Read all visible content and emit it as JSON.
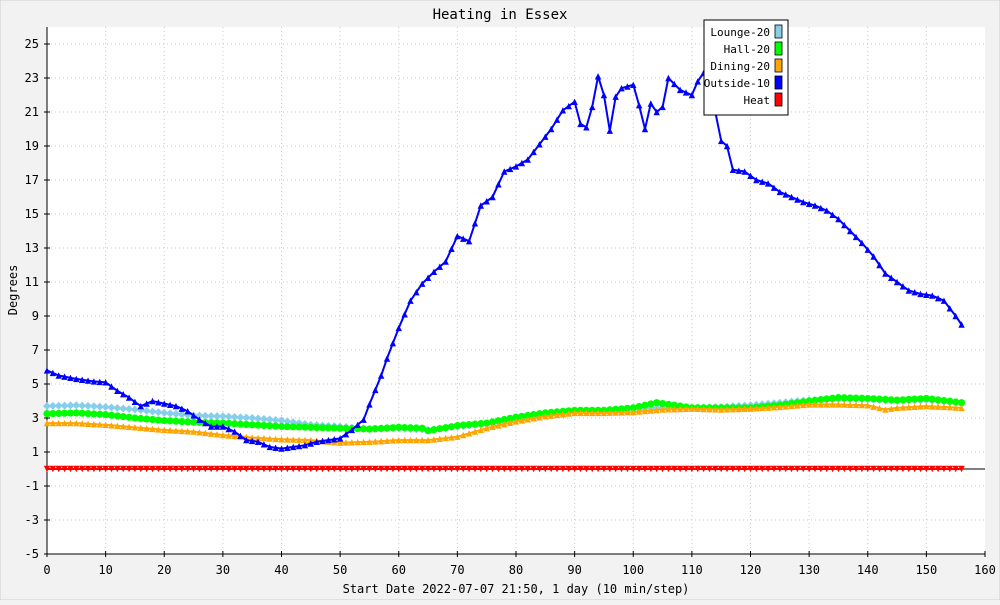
{
  "chart_data": {
    "type": "line",
    "title": "Heating in Essex",
    "xlabel": "Start Date 2022-07-07 21:50, 1 day (10 min/step)",
    "ylabel": "Degrees",
    "xlim": [
      0,
      160
    ],
    "ylim": [
      -5,
      26
    ],
    "xticks": [
      0,
      10,
      20,
      30,
      40,
      50,
      60,
      70,
      80,
      90,
      100,
      110,
      120,
      130,
      140,
      150,
      160
    ],
    "yticks": [
      -5,
      -3,
      -1,
      1,
      3,
      5,
      7,
      9,
      11,
      13,
      15,
      17,
      19,
      21,
      23,
      25
    ],
    "grid": true,
    "legend_position": "top-right",
    "series": [
      {
        "name": "Lounge-20",
        "color": "#87ceeb",
        "marker": "diamond",
        "points": [
          [
            0,
            3.7
          ],
          [
            5,
            3.75
          ],
          [
            10,
            3.65
          ],
          [
            15,
            3.5
          ],
          [
            20,
            3.3
          ],
          [
            25,
            3.15
          ],
          [
            30,
            3.1
          ],
          [
            35,
            3.0
          ],
          [
            40,
            2.85
          ],
          [
            45,
            2.6
          ],
          [
            50,
            2.5
          ],
          [
            55,
            2.35
          ],
          [
            60,
            2.4
          ],
          [
            65,
            2.3
          ],
          [
            70,
            2.5
          ],
          [
            75,
            2.65
          ],
          [
            80,
            2.9
          ],
          [
            85,
            3.2
          ],
          [
            90,
            3.4
          ],
          [
            95,
            3.45
          ],
          [
            100,
            3.55
          ],
          [
            105,
            3.6
          ],
          [
            110,
            3.6
          ],
          [
            115,
            3.65
          ],
          [
            120,
            3.75
          ],
          [
            125,
            3.9
          ],
          [
            130,
            4.05
          ],
          [
            135,
            4.1
          ],
          [
            140,
            4.1
          ],
          [
            145,
            4.0
          ],
          [
            150,
            4.05
          ],
          [
            156,
            3.9
          ]
        ]
      },
      {
        "name": "Hall-20",
        "color": "#00ff00",
        "marker": "circle",
        "points": [
          [
            0,
            3.25
          ],
          [
            5,
            3.3
          ],
          [
            10,
            3.2
          ],
          [
            15,
            3.0
          ],
          [
            20,
            2.85
          ],
          [
            25,
            2.75
          ],
          [
            30,
            2.7
          ],
          [
            35,
            2.6
          ],
          [
            40,
            2.5
          ],
          [
            45,
            2.45
          ],
          [
            50,
            2.4
          ],
          [
            55,
            2.35
          ],
          [
            60,
            2.45
          ],
          [
            64,
            2.4
          ],
          [
            65,
            2.25
          ],
          [
            70,
            2.55
          ],
          [
            75,
            2.7
          ],
          [
            80,
            3.05
          ],
          [
            85,
            3.3
          ],
          [
            90,
            3.45
          ],
          [
            95,
            3.45
          ],
          [
            100,
            3.6
          ],
          [
            104,
            3.9
          ],
          [
            108,
            3.7
          ],
          [
            110,
            3.6
          ],
          [
            115,
            3.6
          ],
          [
            120,
            3.6
          ],
          [
            125,
            3.75
          ],
          [
            130,
            4.0
          ],
          [
            135,
            4.2
          ],
          [
            140,
            4.15
          ],
          [
            145,
            4.05
          ],
          [
            150,
            4.15
          ],
          [
            156,
            3.9
          ]
        ]
      },
      {
        "name": "Dining-20",
        "color": "#ffa500",
        "marker": "triangle-up",
        "points": [
          [
            0,
            2.7
          ],
          [
            5,
            2.7
          ],
          [
            10,
            2.6
          ],
          [
            15,
            2.45
          ],
          [
            20,
            2.3
          ],
          [
            25,
            2.2
          ],
          [
            30,
            2.0
          ],
          [
            35,
            1.85
          ],
          [
            40,
            1.75
          ],
          [
            45,
            1.7
          ],
          [
            50,
            1.55
          ],
          [
            55,
            1.6
          ],
          [
            60,
            1.7
          ],
          [
            65,
            1.7
          ],
          [
            70,
            1.9
          ],
          [
            75,
            2.4
          ],
          [
            80,
            2.8
          ],
          [
            85,
            3.1
          ],
          [
            90,
            3.3
          ],
          [
            95,
            3.3
          ],
          [
            100,
            3.35
          ],
          [
            105,
            3.5
          ],
          [
            110,
            3.55
          ],
          [
            115,
            3.5
          ],
          [
            120,
            3.55
          ],
          [
            125,
            3.65
          ],
          [
            130,
            3.8
          ],
          [
            135,
            3.8
          ],
          [
            140,
            3.75
          ],
          [
            143,
            3.5
          ],
          [
            145,
            3.6
          ],
          [
            150,
            3.7
          ],
          [
            156,
            3.6
          ]
        ]
      },
      {
        "name": "Outside-10",
        "color": "#0000ff",
        "marker": "triangle-up",
        "points": [
          [
            0,
            5.8
          ],
          [
            2,
            5.5
          ],
          [
            5,
            5.3
          ],
          [
            8,
            5.15
          ],
          [
            10,
            5.1
          ],
          [
            12,
            4.6
          ],
          [
            14,
            4.2
          ],
          [
            16,
            3.7
          ],
          [
            18,
            4.0
          ],
          [
            20,
            3.85
          ],
          [
            22,
            3.7
          ],
          [
            24,
            3.4
          ],
          [
            26,
            2.9
          ],
          [
            28,
            2.5
          ],
          [
            30,
            2.5
          ],
          [
            32,
            2.2
          ],
          [
            34,
            1.7
          ],
          [
            36,
            1.6
          ],
          [
            38,
            1.3
          ],
          [
            40,
            1.2
          ],
          [
            42,
            1.3
          ],
          [
            44,
            1.4
          ],
          [
            46,
            1.6
          ],
          [
            48,
            1.7
          ],
          [
            50,
            1.8
          ],
          [
            52,
            2.3
          ],
          [
            54,
            2.9
          ],
          [
            55,
            3.8
          ],
          [
            57,
            5.5
          ],
          [
            58,
            6.5
          ],
          [
            60,
            8.3
          ],
          [
            62,
            9.9
          ],
          [
            64,
            10.9
          ],
          [
            66,
            11.6
          ],
          [
            68,
            12.2
          ],
          [
            70,
            13.7
          ],
          [
            72,
            13.4
          ],
          [
            74,
            15.5
          ],
          [
            76,
            16.0
          ],
          [
            78,
            17.5
          ],
          [
            80,
            17.8
          ],
          [
            82,
            18.2
          ],
          [
            84,
            19.1
          ],
          [
            86,
            20.0
          ],
          [
            88,
            21.1
          ],
          [
            90,
            21.6
          ],
          [
            91,
            20.3
          ],
          [
            92,
            20.1
          ],
          [
            93,
            21.3
          ],
          [
            94,
            23.1
          ],
          [
            95,
            22.0
          ],
          [
            96,
            19.9
          ],
          [
            97,
            21.9
          ],
          [
            98,
            22.4
          ],
          [
            100,
            22.6
          ],
          [
            101,
            21.4
          ],
          [
            102,
            20.0
          ],
          [
            103,
            21.5
          ],
          [
            104,
            21.0
          ],
          [
            105,
            21.3
          ],
          [
            106,
            23.0
          ],
          [
            108,
            22.3
          ],
          [
            110,
            22.0
          ],
          [
            111,
            22.8
          ],
          [
            112,
            23.3
          ],
          [
            113,
            22.0
          ],
          [
            114,
            21.0
          ],
          [
            115,
            19.3
          ],
          [
            116,
            19.0
          ],
          [
            117,
            17.6
          ],
          [
            119,
            17.5
          ],
          [
            121,
            17.0
          ],
          [
            123,
            16.8
          ],
          [
            125,
            16.3
          ],
          [
            127,
            16.0
          ],
          [
            129,
            15.7
          ],
          [
            131,
            15.5
          ],
          [
            133,
            15.2
          ],
          [
            135,
            14.7
          ],
          [
            137,
            14.0
          ],
          [
            139,
            13.3
          ],
          [
            141,
            12.5
          ],
          [
            143,
            11.5
          ],
          [
            145,
            11.0
          ],
          [
            147,
            10.5
          ],
          [
            149,
            10.3
          ],
          [
            151,
            10.2
          ],
          [
            153,
            9.9
          ],
          [
            155,
            9.0
          ],
          [
            156,
            8.5
          ]
        ]
      },
      {
        "name": "Heat",
        "color": "#ff0000",
        "marker": "triangle-down",
        "points": [
          [
            0,
            0
          ],
          [
            156,
            0
          ]
        ]
      }
    ]
  }
}
